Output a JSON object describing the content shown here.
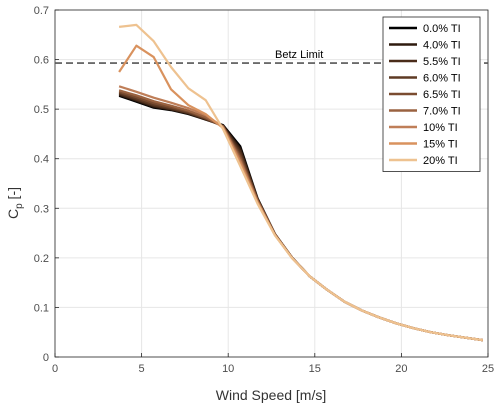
{
  "chart_data": {
    "type": "line",
    "xlabel": "Wind Speed [m/s]",
    "ylabel_main": "C",
    "ylabel_sub": "p",
    "ylabel_tail": " [-]",
    "xlim": [
      0,
      25
    ],
    "ylim": [
      0,
      0.7
    ],
    "xticks": [
      0,
      5,
      10,
      15,
      20,
      25
    ],
    "xtick_labels": [
      "0",
      "5",
      "10",
      "15",
      "20",
      "25"
    ],
    "yticks": [
      0,
      0.1,
      0.2,
      0.3,
      0.4,
      0.5,
      0.6,
      0.7
    ],
    "ytick_labels": [
      "0",
      "0.1",
      "0.2",
      "0.3",
      "0.4",
      "0.5",
      "0.6",
      "0.7"
    ],
    "grid": true,
    "legend_position": "top-right",
    "annotation": {
      "label": "Betz Limit",
      "y": 0.593,
      "style": "dashed",
      "color": "#555555"
    },
    "series": [
      {
        "name": "0.0% TI",
        "color": "#000000",
        "x": [
          3.7,
          4.7,
          5.7,
          6.7,
          7.7,
          8.7,
          9.7,
          10.7,
          11.7,
          12.7,
          13.7,
          14.7,
          15.7,
          16.7,
          17.7,
          18.7,
          19.7,
          20.7,
          21.7,
          22.7,
          23.7,
          24.7
        ],
        "y": [
          0.527,
          0.515,
          0.503,
          0.498,
          0.49,
          0.479,
          0.468,
          0.425,
          0.32,
          0.248,
          0.2,
          0.163,
          0.136,
          0.112,
          0.094,
          0.08,
          0.068,
          0.058,
          0.05,
          0.044,
          0.039,
          0.034
        ]
      },
      {
        "name": "4.0% TI",
        "color": "#2e1a0f",
        "x": [
          3.7,
          4.7,
          5.7,
          6.7,
          7.7,
          8.7,
          9.7,
          10.7,
          11.7,
          12.7,
          13.7,
          14.7,
          15.7,
          16.7,
          17.7,
          18.7,
          19.7,
          20.7,
          21.7,
          22.7,
          23.7,
          24.7
        ],
        "y": [
          0.529,
          0.517,
          0.505,
          0.499,
          0.491,
          0.479,
          0.467,
          0.42,
          0.319,
          0.248,
          0.2,
          0.163,
          0.136,
          0.112,
          0.094,
          0.08,
          0.068,
          0.058,
          0.05,
          0.044,
          0.039,
          0.034
        ]
      },
      {
        "name": "5.5% TI",
        "color": "#4a2c1a",
        "x": [
          3.7,
          4.7,
          5.7,
          6.7,
          7.7,
          8.7,
          9.7,
          10.7,
          11.7,
          12.7,
          13.7,
          14.7,
          15.7,
          16.7,
          17.7,
          18.7,
          19.7,
          20.7,
          21.7,
          22.7,
          23.7,
          24.7
        ],
        "y": [
          0.531,
          0.519,
          0.507,
          0.5,
          0.492,
          0.48,
          0.466,
          0.415,
          0.318,
          0.248,
          0.2,
          0.163,
          0.136,
          0.112,
          0.094,
          0.08,
          0.068,
          0.058,
          0.05,
          0.044,
          0.039,
          0.034
        ]
      },
      {
        "name": "6.0% TI",
        "color": "#5e3a24",
        "x": [
          3.7,
          4.7,
          5.7,
          6.7,
          7.7,
          8.7,
          9.7,
          10.7,
          11.7,
          12.7,
          13.7,
          14.7,
          15.7,
          16.7,
          17.7,
          18.7,
          19.7,
          20.7,
          21.7,
          22.7,
          23.7,
          24.7
        ],
        "y": [
          0.533,
          0.521,
          0.509,
          0.502,
          0.493,
          0.481,
          0.466,
          0.41,
          0.317,
          0.248,
          0.2,
          0.163,
          0.136,
          0.112,
          0.094,
          0.08,
          0.068,
          0.058,
          0.05,
          0.044,
          0.039,
          0.034
        ]
      },
      {
        "name": "6.5% TI",
        "color": "#7a4c30",
        "x": [
          3.7,
          4.7,
          5.7,
          6.7,
          7.7,
          8.7,
          9.7,
          10.7,
          11.7,
          12.7,
          13.7,
          14.7,
          15.7,
          16.7,
          17.7,
          18.7,
          19.7,
          20.7,
          21.7,
          22.7,
          23.7,
          24.7
        ],
        "y": [
          0.535,
          0.524,
          0.512,
          0.504,
          0.495,
          0.482,
          0.465,
          0.405,
          0.316,
          0.247,
          0.2,
          0.163,
          0.136,
          0.112,
          0.094,
          0.08,
          0.068,
          0.058,
          0.05,
          0.044,
          0.039,
          0.034
        ]
      },
      {
        "name": "7.0% TI",
        "color": "#9a6240",
        "x": [
          3.7,
          4.7,
          5.7,
          6.7,
          7.7,
          8.7,
          9.7,
          10.7,
          11.7,
          12.7,
          13.7,
          14.7,
          15.7,
          16.7,
          17.7,
          18.7,
          19.7,
          20.7,
          21.7,
          22.7,
          23.7,
          24.7
        ],
        "y": [
          0.538,
          0.528,
          0.516,
          0.507,
          0.497,
          0.484,
          0.465,
          0.4,
          0.315,
          0.247,
          0.2,
          0.163,
          0.136,
          0.112,
          0.094,
          0.08,
          0.068,
          0.058,
          0.05,
          0.044,
          0.039,
          0.034
        ]
      },
      {
        "name": "10% TI",
        "color": "#bf7e58",
        "x": [
          3.7,
          4.7,
          5.7,
          6.7,
          7.7,
          8.7,
          9.7,
          10.7,
          11.7,
          12.7,
          13.7,
          14.7,
          15.7,
          16.7,
          17.7,
          18.7,
          19.7,
          20.7,
          21.7,
          22.7,
          23.7,
          24.7
        ],
        "y": [
          0.546,
          0.535,
          0.523,
          0.513,
          0.502,
          0.488,
          0.464,
          0.395,
          0.313,
          0.246,
          0.199,
          0.163,
          0.136,
          0.112,
          0.094,
          0.08,
          0.068,
          0.058,
          0.05,
          0.044,
          0.039,
          0.034
        ]
      },
      {
        "name": "15% TI",
        "color": "#d9925e",
        "x": [
          3.7,
          4.7,
          5.7,
          6.7,
          7.7,
          8.7,
          9.7,
          10.7,
          11.7,
          12.7,
          13.7,
          14.7,
          15.7,
          16.7,
          17.7,
          18.7,
          19.7,
          20.7,
          21.7,
          22.7,
          23.7,
          24.7
        ],
        "y": [
          0.575,
          0.628,
          0.605,
          0.54,
          0.508,
          0.49,
          0.462,
          0.39,
          0.311,
          0.246,
          0.199,
          0.163,
          0.136,
          0.112,
          0.094,
          0.08,
          0.068,
          0.058,
          0.05,
          0.044,
          0.039,
          0.034
        ]
      },
      {
        "name": "20% TI",
        "color": "#eec290",
        "x": [
          3.7,
          4.7,
          5.7,
          6.7,
          7.7,
          8.7,
          9.7,
          10.7,
          11.7,
          12.7,
          13.7,
          14.7,
          15.7,
          16.7,
          17.7,
          18.7,
          19.7,
          20.7,
          21.7,
          22.7,
          23.7,
          24.7
        ],
        "y": [
          0.666,
          0.67,
          0.637,
          0.585,
          0.542,
          0.518,
          0.46,
          0.385,
          0.309,
          0.245,
          0.199,
          0.163,
          0.136,
          0.112,
          0.094,
          0.08,
          0.068,
          0.058,
          0.05,
          0.044,
          0.039,
          0.034
        ]
      }
    ]
  }
}
